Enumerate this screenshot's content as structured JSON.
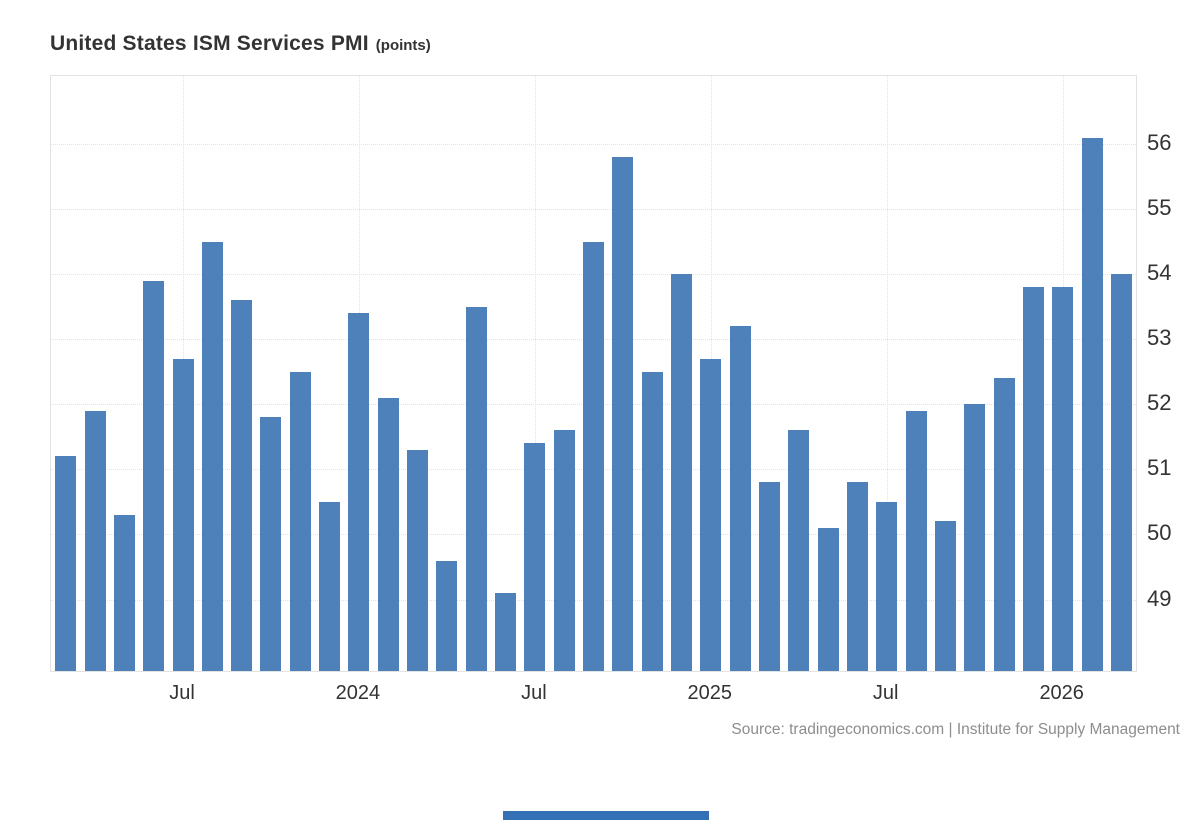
{
  "header": {
    "title": "United States ISM Services PMI",
    "subtitle": "(points)"
  },
  "footer": {
    "source": "Source: tradingeconomics.com | Institute for Supply Management"
  },
  "colors": {
    "bar": "#4e80ba",
    "grid": "#e4e4e4",
    "plot_border": "#e2e2e2",
    "title_text": "#333333",
    "source_text": "#8d8d8d",
    "bottom_strip": "#3470b6"
  },
  "chart_data": {
    "type": "bar",
    "title": "United States ISM Services PMI",
    "subtitle": "(points)",
    "xlabel": "",
    "ylabel": "points",
    "grid": true,
    "y_axis_side": "right",
    "ylim": [
      47.9,
      57.05
    ],
    "y_ticks": [
      49,
      50,
      51,
      52,
      53,
      54,
      55,
      56
    ],
    "x": [
      "Mar 2023",
      "Apr 2023",
      "May 2023",
      "Jun 2023",
      "Jul 2023",
      "Aug 2023",
      "Sep 2023",
      "Oct 2023",
      "Nov 2023",
      "Dec 2023",
      "Jan 2024",
      "Feb 2024",
      "Mar 2024",
      "Apr 2024",
      "May 2024",
      "Jun 2024",
      "Jul 2024",
      "Aug 2024",
      "Sep 2024",
      "Oct 2024",
      "Nov 2024",
      "Dec 2024",
      "Jan 2025",
      "Feb 2025",
      "Mar 2025",
      "Apr 2025",
      "May 2025",
      "Jun 2025",
      "Jul 2025",
      "Aug 2025",
      "Sep 2025",
      "Oct 2025",
      "Nov 2025",
      "Dec 2025",
      "Jan 2026",
      "Feb 2026",
      "Mar 2026"
    ],
    "values": [
      51.2,
      51.9,
      50.3,
      53.9,
      52.7,
      54.5,
      53.6,
      51.8,
      52.5,
      50.5,
      53.4,
      52.1,
      51.3,
      49.6,
      53.5,
      49.1,
      51.4,
      51.6,
      54.5,
      55.8,
      52.5,
      54.0,
      52.7,
      53.2,
      50.8,
      51.6,
      50.1,
      50.8,
      50.5,
      51.9,
      50.2,
      52.0,
      52.4,
      53.8,
      53.8,
      56.1,
      54.0
    ],
    "x_tick_labels": [
      {
        "label": "Jul",
        "index": 4
      },
      {
        "label": "2024",
        "index": 10
      },
      {
        "label": "Jul",
        "index": 16
      },
      {
        "label": "2025",
        "index": 22
      },
      {
        "label": "Jul",
        "index": 28
      },
      {
        "label": "2026",
        "index": 34
      }
    ]
  }
}
